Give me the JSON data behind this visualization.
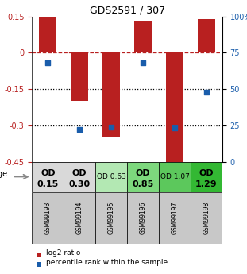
{
  "title": "GDS2591 / 307",
  "samples": [
    "GSM99193",
    "GSM99194",
    "GSM99195",
    "GSM99196",
    "GSM99197",
    "GSM99198"
  ],
  "log2_ratio": [
    0.15,
    -0.2,
    -0.35,
    0.13,
    -0.47,
    0.14
  ],
  "percentile_rank": [
    68,
    22,
    24,
    68,
    23,
    48
  ],
  "od_labels_line1": [
    "OD",
    "OD",
    "OD 0.63",
    "OD",
    "OD 1.07",
    "OD"
  ],
  "od_labels_line2": [
    "0.15",
    "0.30",
    "",
    "0.85",
    "",
    "1.29"
  ],
  "od_bold": [
    true,
    true,
    false,
    true,
    false,
    true
  ],
  "od_fontsize_big": 8,
  "od_fontsize_small": 6.5,
  "cell_colors": [
    "#d9d9d9",
    "#d9d9d9",
    "#b3e8b3",
    "#7dd87d",
    "#5cc85c",
    "#33b833"
  ],
  "bar_color": "#b82020",
  "dot_color": "#1a5dab",
  "ylim_left": [
    -0.45,
    0.15
  ],
  "yticks_left": [
    0.15,
    0.0,
    -0.15,
    -0.3,
    -0.45
  ],
  "ylim_right": [
    0,
    100
  ],
  "yticks_right": [
    100,
    75,
    50,
    25,
    0
  ],
  "hline_y": 0.0,
  "dotted_lines": [
    -0.15,
    -0.3
  ],
  "bar_width": 0.55,
  "background_color": "#ffffff",
  "sample_bg_color": "#c8c8c8",
  "legend_red_label": "log2 ratio",
  "legend_blue_label": "percentile rank within the sample",
  "age_label": "age"
}
